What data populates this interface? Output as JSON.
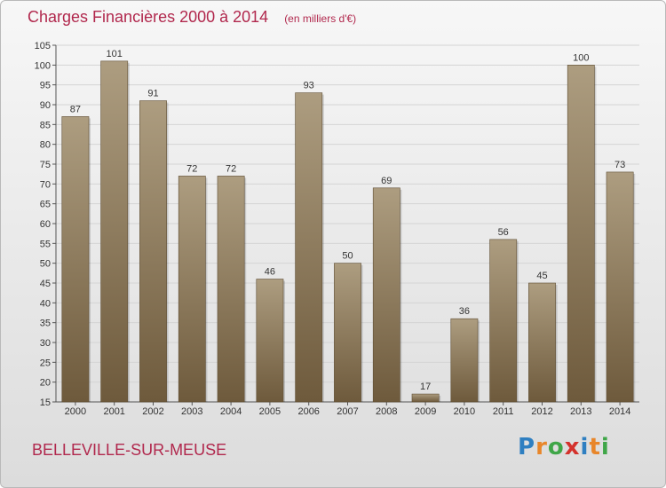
{
  "title": "Charges Financières 2000 à 2014",
  "unit_note": "(en milliers d'€)",
  "commune": "BELLEVILLE-SUR-MEUSE",
  "logo": {
    "letters": [
      "P",
      "r",
      "o",
      "x",
      "i",
      "t",
      "i"
    ],
    "colors": [
      "#2f7fc1",
      "#e8862a",
      "#3fa648",
      "#d4322c",
      "#2f7fc1",
      "#e8862a",
      "#3fa648"
    ]
  },
  "colors": {
    "bar_light": "#ad9d80",
    "bar_dark": "#6e5a3c",
    "grid": "#d4d4d4",
    "title": "#b1284d"
  },
  "chart_data": {
    "type": "bar",
    "categories": [
      "2000",
      "2001",
      "2002",
      "2003",
      "2004",
      "2005",
      "2006",
      "2007",
      "2008",
      "2009",
      "2010",
      "2011",
      "2012",
      "2013",
      "2014"
    ],
    "values": [
      87,
      101,
      91,
      72,
      72,
      46,
      93,
      50,
      69,
      17,
      36,
      56,
      45,
      100,
      73
    ],
    "ylim": [
      15,
      105
    ],
    "yticks": [
      15,
      20,
      25,
      30,
      35,
      40,
      45,
      50,
      55,
      60,
      65,
      70,
      75,
      80,
      85,
      90,
      95,
      100,
      105
    ],
    "grid": true,
    "data_labels": true
  }
}
